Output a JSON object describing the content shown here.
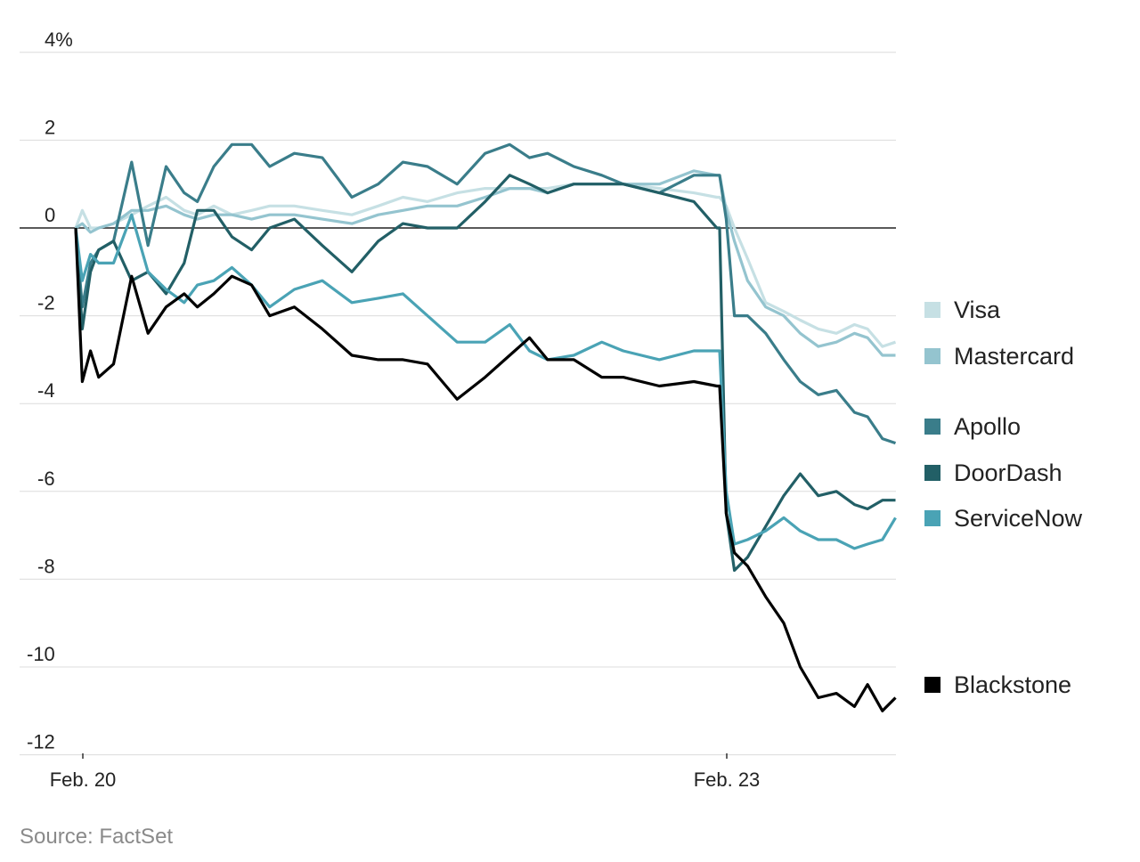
{
  "chart_data": {
    "type": "line",
    "title": "",
    "xlabel": "",
    "ylabel": "",
    "y_unit": "%",
    "ylim": [
      -12,
      4
    ],
    "yticks": [
      4,
      2,
      0,
      -2,
      -4,
      -6,
      -8,
      -10,
      -12
    ],
    "ytick_labels": [
      "4%",
      "2",
      "0",
      "-2",
      "-4",
      "-6",
      "-8",
      "-10",
      "-12"
    ],
    "xtick_labels": [
      "Feb. 20",
      "Feb. 23"
    ],
    "grid": true,
    "legend_position": "right",
    "x": [
      "Feb. 20 09:30",
      "Feb. 20 09:34",
      "Feb. 20 09:39",
      "Feb. 20 09:44",
      "Feb. 20 09:53",
      "Feb. 20 10:04",
      "Feb. 20 10:14",
      "Feb. 20 10:25",
      "Feb. 20 10:36",
      "Feb. 20 10:44",
      "Feb. 20 10:54",
      "Feb. 20 11:05",
      "Feb. 20 11:17",
      "Feb. 20 11:28",
      "Feb. 20 11:43",
      "Feb. 20 12:00",
      "Feb. 20 12:18",
      "Feb. 20 12:34",
      "Feb. 20 12:49",
      "Feb. 20 13:04",
      "Feb. 20 13:22",
      "Feb. 20 13:39",
      "Feb. 20 13:54",
      "Feb. 20 14:06",
      "Feb. 20 14:17",
      "Feb. 20 14:33",
      "Feb. 20 14:50",
      "Feb. 20 15:03",
      "Feb. 20 15:25",
      "Feb. 20 15:46",
      "Feb. 20 16:00",
      "Feb. 23 09:30",
      "Feb. 23 09:34",
      "Feb. 23 09:39",
      "Feb. 23 09:47",
      "Feb. 23 09:58",
      "Feb. 23 10:09",
      "Feb. 23 10:19",
      "Feb. 23 10:30",
      "Feb. 23 10:41",
      "Feb. 23 10:52",
      "Feb. 23 11:00",
      "Feb. 23 11:09",
      "Feb. 23 11:17"
    ],
    "series": [
      {
        "name": "Visa",
        "color": "#c6e0e4",
        "values": [
          0,
          0.4,
          0,
          0,
          0.1,
          0.3,
          0.5,
          0.7,
          0.4,
          0.3,
          0.5,
          0.3,
          0.4,
          0.5,
          0.5,
          0.4,
          0.3,
          0.5,
          0.7,
          0.6,
          0.8,
          0.9,
          0.9,
          0.9,
          0.9,
          1.0,
          1.0,
          1.0,
          0.9,
          0.8,
          0.7,
          0.7,
          0.5,
          0.0,
          -0.7,
          -1.7,
          -1.9,
          -2.1,
          -2.3,
          -2.4,
          -2.2,
          -2.3,
          -2.7,
          -2.6
        ]
      },
      {
        "name": "Mastercard",
        "color": "#94c4cf",
        "values": [
          0,
          0.1,
          -0.1,
          0,
          0.1,
          0.4,
          0.4,
          0.5,
          0.3,
          0.2,
          0.3,
          0.3,
          0.2,
          0.3,
          0.3,
          0.2,
          0.1,
          0.3,
          0.4,
          0.5,
          0.5,
          0.7,
          0.9,
          0.9,
          0.8,
          1.0,
          1.0,
          1.0,
          1.0,
          1.3,
          1.2,
          1.2,
          0.4,
          -0.3,
          -1.2,
          -1.8,
          -2.0,
          -2.4,
          -2.7,
          -2.6,
          -2.4,
          -2.5,
          -2.9,
          -2.9
        ]
      },
      {
        "name": "Apollo",
        "color": "#3a7d8a",
        "values": [
          0,
          -1.8,
          -0.8,
          -0.5,
          -0.3,
          1.5,
          -0.4,
          1.4,
          0.8,
          0.6,
          1.4,
          1.9,
          1.9,
          1.4,
          1.7,
          1.6,
          0.7,
          1.0,
          1.5,
          1.4,
          1.0,
          1.7,
          1.9,
          1.6,
          1.7,
          1.4,
          1.2,
          1.0,
          0.8,
          1.2,
          1.2,
          1.2,
          0.2,
          -2.0,
          -2.0,
          -2.4,
          -3.0,
          -3.5,
          -3.8,
          -3.7,
          -4.2,
          -4.3,
          -4.8,
          -4.9
        ]
      },
      {
        "name": "DoorDash",
        "color": "#225f66",
        "values": [
          0,
          -2.3,
          -1.0,
          -0.5,
          -0.3,
          -1.2,
          -1.0,
          -1.5,
          -0.8,
          0.4,
          0.4,
          -0.2,
          -0.5,
          0.0,
          0.2,
          -0.4,
          -1.0,
          -0.3,
          0.1,
          0.0,
          0.0,
          0.6,
          1.2,
          1.0,
          0.8,
          1.0,
          1.0,
          1.0,
          0.8,
          0.6,
          0.0,
          0.0,
          -6.5,
          -7.8,
          -7.5,
          -6.8,
          -6.1,
          -5.6,
          -6.1,
          -6.0,
          -6.3,
          -6.4,
          -6.2,
          -6.2
        ]
      },
      {
        "name": "ServiceNow",
        "color": "#4aa3b5",
        "values": [
          0,
          -1.2,
          -0.6,
          -0.8,
          -0.8,
          0.3,
          -1.0,
          -1.4,
          -1.7,
          -1.3,
          -1.2,
          -0.9,
          -1.3,
          -1.8,
          -1.4,
          -1.2,
          -1.7,
          -1.6,
          -1.5,
          -2.0,
          -2.6,
          -2.6,
          -2.2,
          -2.8,
          -3.0,
          -2.9,
          -2.6,
          -2.8,
          -3.0,
          -2.8,
          -2.8,
          -2.8,
          -6.0,
          -7.2,
          -7.1,
          -6.9,
          -6.6,
          -6.9,
          -7.1,
          -7.1,
          -7.3,
          -7.2,
          -7.1,
          -6.6
        ]
      },
      {
        "name": "Blackstone",
        "color": "#000000",
        "values": [
          0,
          -3.5,
          -2.8,
          -3.4,
          -3.1,
          -1.1,
          -2.4,
          -1.8,
          -1.5,
          -1.8,
          -1.5,
          -1.1,
          -1.3,
          -2.0,
          -1.8,
          -2.3,
          -2.9,
          -3.0,
          -3.0,
          -3.1,
          -3.9,
          -3.4,
          -2.9,
          -2.5,
          -3.0,
          -3.0,
          -3.4,
          -3.4,
          -3.6,
          -3.5,
          -3.6,
          -3.6,
          -6.5,
          -7.4,
          -7.7,
          -8.4,
          -9.0,
          -10.0,
          -10.7,
          -10.6,
          -10.9,
          -10.4,
          -11.0,
          -10.7
        ]
      }
    ],
    "source": "Source: FactSet"
  }
}
